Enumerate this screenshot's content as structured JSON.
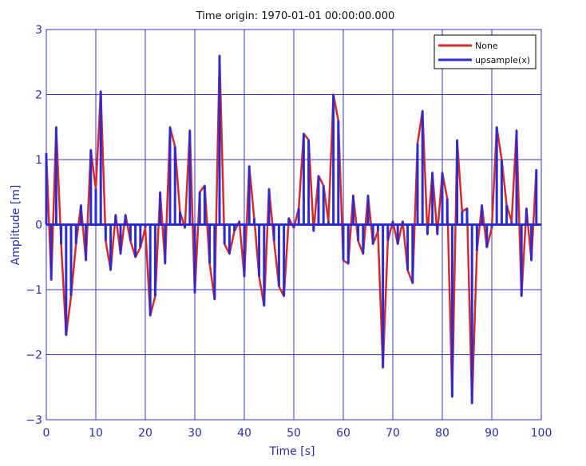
{
  "chart_data": {
    "type": "line",
    "title": "Time origin: 1970-01-01 00:00:00.000",
    "xlabel": "Time  [s]",
    "ylabel": "Amplitude  [m]",
    "xlim": [
      0,
      100
    ],
    "ylim": [
      -3,
      3
    ],
    "x_ticks": [
      0,
      10,
      20,
      30,
      40,
      50,
      60,
      70,
      80,
      90,
      100
    ],
    "y_ticks": [
      -3,
      -2,
      -1,
      0,
      1,
      2,
      3
    ],
    "x_tick_labels": [
      "0",
      "10",
      "20",
      "30",
      "40",
      "50",
      "60",
      "70",
      "80",
      "90",
      "100"
    ],
    "y_tick_labels": [
      "−3",
      "−2",
      "−1",
      "0",
      "1",
      "2",
      "3"
    ],
    "grid": true,
    "legend_position": "top-right",
    "colors": {
      "None": "#d62a2a",
      "upsample(x)": "#2b2bd6",
      "grid": "#3333cc",
      "axes": "#3333cc"
    },
    "series": [
      {
        "name": "None",
        "style": "line",
        "x": [
          0,
          1,
          2,
          3,
          4,
          5,
          6,
          7,
          8,
          9,
          10,
          11,
          12,
          13,
          14,
          15,
          16,
          17,
          18,
          19,
          20,
          21,
          22,
          23,
          24,
          25,
          26,
          27,
          28,
          29,
          30,
          31,
          32,
          33,
          34,
          35,
          36,
          37,
          38,
          39,
          40,
          41,
          42,
          43,
          44,
          45,
          46,
          47,
          48,
          49,
          50,
          51,
          52,
          53,
          54,
          55,
          56,
          57,
          58,
          59,
          60,
          61,
          62,
          63,
          64,
          65,
          66,
          67,
          68,
          69,
          70,
          71,
          72,
          73,
          74,
          75,
          76,
          77,
          78,
          79,
          80,
          81,
          82,
          83,
          84,
          85,
          86,
          87,
          88,
          89,
          90,
          91,
          92,
          93,
          94,
          95,
          96,
          97,
          98,
          99
        ],
        "values": [
          1.1,
          -0.85,
          1.5,
          -0.3,
          -1.7,
          -1.1,
          -0.3,
          0.3,
          -0.55,
          1.15,
          0.55,
          2.05,
          -0.25,
          -0.7,
          0.15,
          -0.45,
          0.15,
          -0.25,
          -0.5,
          -0.35,
          -0.05,
          -1.4,
          -1.1,
          0.5,
          -0.6,
          1.5,
          1.2,
          0.2,
          -0.05,
          1.45,
          -1.05,
          0.5,
          0.6,
          -0.6,
          -1.15,
          2.6,
          -0.3,
          -0.45,
          -0.1,
          0.05,
          -0.8,
          0.9,
          0.1,
          -0.8,
          -1.25,
          0.55,
          -0.25,
          -0.95,
          -1.1,
          0.1,
          -0.05,
          0.25,
          1.4,
          1.3,
          -0.1,
          0.75,
          0.6,
          0.05,
          2.0,
          1.6,
          -0.55,
          -0.6,
          0.45,
          -0.25,
          -0.45,
          0.45,
          -0.3,
          -0.1,
          -2.2,
          -0.25,
          0.05,
          -0.3,
          0.05,
          -0.7,
          -0.9,
          1.25,
          1.75,
          -0.15,
          0.8,
          -0.15,
          0.8,
          0.4,
          -2.65,
          1.3,
          0.2,
          0.25,
          -2.75,
          -0.4,
          0.3,
          -0.35,
          -0.05,
          1.5,
          1.0,
          0.3,
          0.05,
          1.45,
          -1.1,
          0.25,
          -0.55,
          0.85
        ]
      },
      {
        "name": "upsample(x)",
        "style": "stems",
        "x": [
          0,
          1,
          2,
          3,
          4,
          5,
          6,
          7,
          8,
          9,
          10,
          11,
          12,
          13,
          14,
          15,
          16,
          17,
          18,
          19,
          20,
          21,
          22,
          23,
          24,
          25,
          26,
          27,
          28,
          29,
          30,
          31,
          32,
          33,
          34,
          35,
          36,
          37,
          38,
          39,
          40,
          41,
          42,
          43,
          44,
          45,
          46,
          47,
          48,
          49,
          50,
          51,
          52,
          53,
          54,
          55,
          56,
          57,
          58,
          59,
          60,
          61,
          62,
          63,
          64,
          65,
          66,
          67,
          68,
          69,
          70,
          71,
          72,
          73,
          74,
          75,
          76,
          77,
          78,
          79,
          80,
          81,
          82,
          83,
          84,
          85,
          86,
          87,
          88,
          89,
          90,
          91,
          92,
          93,
          94,
          95,
          96,
          97,
          98,
          99
        ],
        "values": [
          1.1,
          -0.85,
          1.5,
          -0.3,
          -1.7,
          -1.1,
          -0.3,
          0.3,
          -0.55,
          1.15,
          0.55,
          2.05,
          -0.25,
          -0.7,
          0.15,
          -0.45,
          0.15,
          -0.25,
          -0.5,
          -0.35,
          -0.05,
          -1.4,
          -1.1,
          0.5,
          -0.6,
          1.5,
          1.2,
          0.2,
          -0.05,
          1.45,
          -1.05,
          0.5,
          0.6,
          -0.6,
          -1.15,
          2.6,
          -0.3,
          -0.45,
          -0.1,
          0.05,
          -0.8,
          0.9,
          0.1,
          -0.8,
          -1.25,
          0.55,
          -0.25,
          -0.95,
          -1.1,
          0.1,
          -0.05,
          0.25,
          1.4,
          1.3,
          -0.1,
          0.75,
          0.6,
          0.05,
          2.0,
          1.6,
          -0.55,
          -0.6,
          0.45,
          -0.25,
          -0.45,
          0.45,
          -0.3,
          -0.1,
          -2.2,
          -0.25,
          0.05,
          -0.3,
          0.05,
          -0.7,
          -0.9,
          1.25,
          1.75,
          -0.15,
          0.8,
          -0.15,
          0.8,
          0.4,
          -2.65,
          1.3,
          0.2,
          0.25,
          -2.75,
          -0.4,
          0.3,
          -0.35,
          -0.05,
          1.5,
          1.0,
          0.3,
          0.05,
          1.45,
          -1.1,
          0.25,
          -0.55,
          0.85
        ]
      }
    ]
  }
}
